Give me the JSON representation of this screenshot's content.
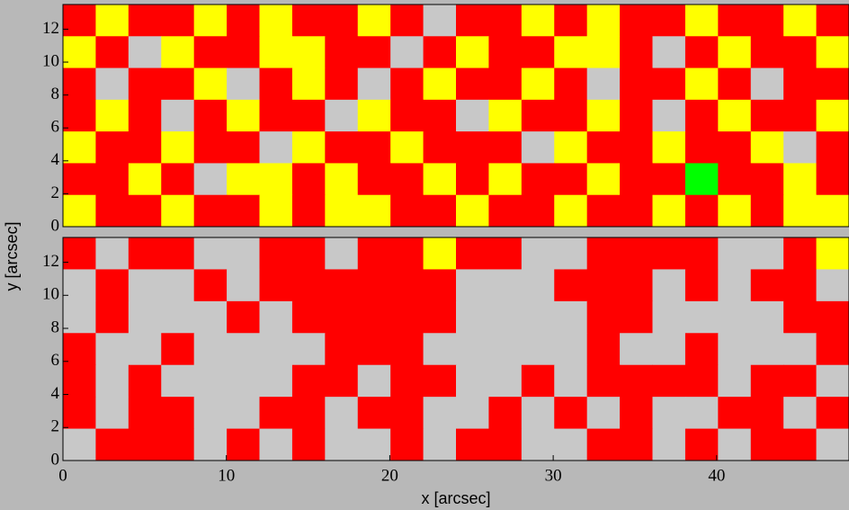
{
  "chart_data": [
    {
      "type": "heatmap",
      "ylabel": "y [arcsec]",
      "xlim": [
        0,
        48.1
      ],
      "ylim": [
        0,
        13.5
      ],
      "yticks": [
        0,
        2,
        4,
        6,
        8,
        10,
        12
      ],
      "colors": [
        "#c8c8c8",
        "#ff0000",
        "#ffff00",
        "#00ff00"
      ],
      "values": [
        [
          1,
          2,
          1,
          1,
          2,
          1,
          2,
          1,
          1,
          2,
          1,
          0,
          1,
          1,
          2,
          1,
          2,
          1,
          1,
          2,
          1,
          1,
          2,
          1
        ],
        [
          2,
          1,
          0,
          2,
          1,
          1,
          2,
          2,
          1,
          1,
          0,
          1,
          2,
          1,
          1,
          2,
          2,
          1,
          0,
          1,
          2,
          1,
          1,
          2
        ],
        [
          1,
          0,
          1,
          1,
          2,
          0,
          1,
          2,
          1,
          0,
          1,
          2,
          1,
          1,
          2,
          1,
          0,
          1,
          1,
          2,
          1,
          0,
          1,
          1
        ],
        [
          1,
          2,
          1,
          0,
          1,
          2,
          1,
          1,
          0,
          2,
          1,
          1,
          0,
          2,
          1,
          1,
          2,
          1,
          0,
          1,
          2,
          1,
          1,
          2
        ],
        [
          2,
          1,
          1,
          2,
          1,
          1,
          0,
          2,
          1,
          1,
          2,
          1,
          1,
          1,
          0,
          2,
          1,
          1,
          2,
          1,
          1,
          2,
          0,
          1
        ],
        [
          1,
          1,
          2,
          1,
          0,
          2,
          2,
          1,
          2,
          1,
          1,
          2,
          1,
          2,
          1,
          1,
          2,
          1,
          1,
          3,
          1,
          1,
          2,
          1
        ],
        [
          2,
          1,
          1,
          2,
          1,
          1,
          2,
          1,
          2,
          2,
          1,
          1,
          2,
          1,
          1,
          2,
          1,
          1,
          2,
          1,
          2,
          1,
          2,
          2
        ]
      ]
    },
    {
      "type": "heatmap",
      "xlabel": "x [arcsec]",
      "xlim": [
        0,
        48.1
      ],
      "ylim": [
        0,
        13.5
      ],
      "xticks": [
        0,
        10,
        20,
        30,
        40
      ],
      "yticks": [
        0,
        2,
        4,
        6,
        8,
        10,
        12
      ],
      "colors": [
        "#c8c8c8",
        "#ff0000",
        "#ffff00",
        "#00ff00"
      ],
      "values": [
        [
          1,
          0,
          1,
          1,
          0,
          0,
          1,
          1,
          0,
          1,
          1,
          2,
          1,
          1,
          0,
          0,
          1,
          1,
          1,
          1,
          0,
          0,
          1,
          2
        ],
        [
          0,
          1,
          0,
          0,
          1,
          0,
          1,
          1,
          1,
          1,
          1,
          1,
          0,
          0,
          0,
          1,
          1,
          1,
          0,
          1,
          0,
          1,
          1,
          0
        ],
        [
          0,
          1,
          0,
          0,
          0,
          1,
          0,
          1,
          1,
          1,
          1,
          1,
          0,
          0,
          0,
          0,
          1,
          1,
          0,
          0,
          0,
          0,
          1,
          1
        ],
        [
          1,
          0,
          0,
          1,
          0,
          0,
          0,
          0,
          1,
          1,
          1,
          0,
          0,
          0,
          0,
          0,
          1,
          0,
          0,
          1,
          0,
          0,
          0,
          1
        ],
        [
          1,
          0,
          1,
          0,
          0,
          0,
          0,
          1,
          1,
          0,
          1,
          1,
          0,
          0,
          1,
          0,
          1,
          1,
          1,
          1,
          0,
          1,
          1,
          0
        ],
        [
          1,
          0,
          1,
          1,
          0,
          0,
          1,
          1,
          0,
          1,
          1,
          0,
          0,
          1,
          0,
          1,
          0,
          1,
          0,
          0,
          1,
          1,
          0,
          1
        ],
        [
          0,
          1,
          1,
          1,
          0,
          1,
          0,
          1,
          0,
          0,
          1,
          0,
          1,
          1,
          0,
          0,
          1,
          1,
          0,
          1,
          0,
          1,
          1,
          0
        ]
      ]
    }
  ]
}
